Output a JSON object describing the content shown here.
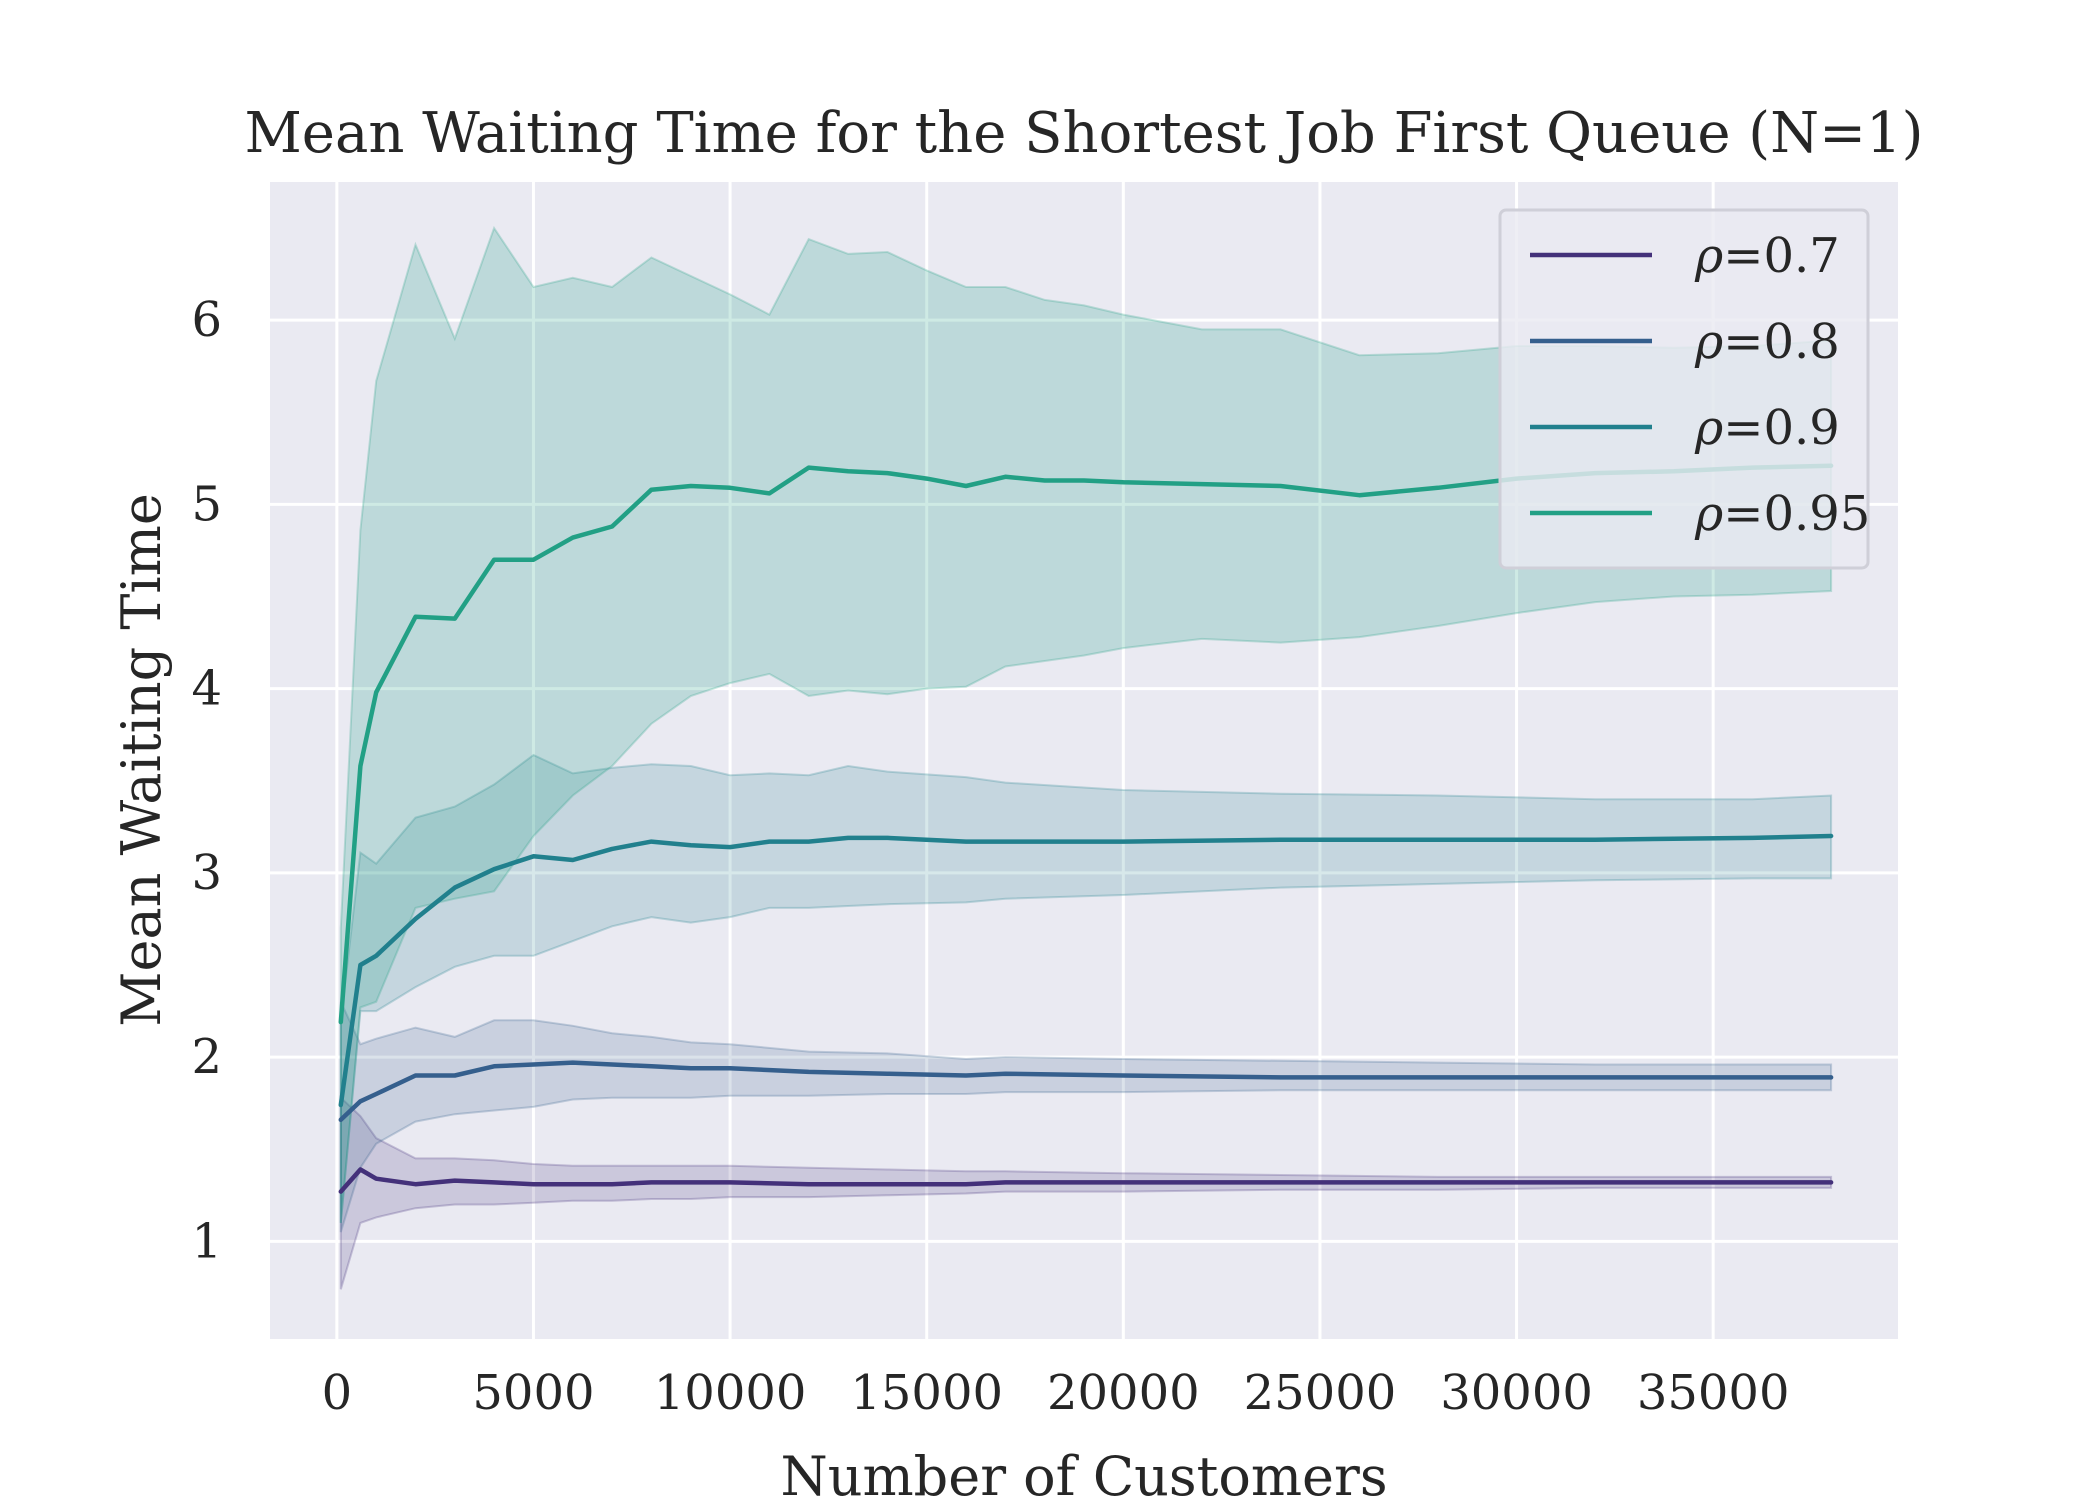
{
  "chart_data": {
    "type": "line",
    "title": "Mean Waiting Time for the Shortest Job First Queue (N=1)",
    "xlabel": "Number of Customers",
    "ylabel": "Mean Waiting Time",
    "xlim": [
      -1700,
      39700
    ],
    "ylim": [
      0.47,
      6.75
    ],
    "xticks": [
      0,
      5000,
      10000,
      15000,
      20000,
      25000,
      30000,
      35000
    ],
    "xtick_labels": [
      "0",
      "5000",
      "10000",
      "15000",
      "20000",
      "25000",
      "30000",
      "35000"
    ],
    "yticks": [
      1,
      2,
      3,
      4,
      5,
      6
    ],
    "ytick_labels": [
      "1",
      "2",
      "3",
      "4",
      "5",
      "6"
    ],
    "grid": true,
    "legend_position": "top-right",
    "legend_prefix": "ρ",
    "series": [
      {
        "name": "=0.7",
        "color": "#44317a",
        "x": [
          100,
          600,
          1000,
          2000,
          3000,
          4000,
          5000,
          6000,
          7000,
          8000,
          9000,
          10000,
          12000,
          14000,
          16000,
          17000,
          20000,
          24000,
          28000,
          32000,
          36000,
          38000
        ],
        "y": [
          1.27,
          1.39,
          1.34,
          1.31,
          1.33,
          1.32,
          1.31,
          1.31,
          1.31,
          1.32,
          1.32,
          1.32,
          1.31,
          1.31,
          1.31,
          1.32,
          1.32,
          1.32,
          1.32,
          1.32,
          1.32,
          1.32
        ],
        "lower": [
          0.74,
          1.1,
          1.13,
          1.18,
          1.2,
          1.2,
          1.21,
          1.22,
          1.22,
          1.23,
          1.23,
          1.24,
          1.24,
          1.25,
          1.26,
          1.27,
          1.27,
          1.28,
          1.28,
          1.29,
          1.29,
          1.29
        ],
        "upper": [
          1.78,
          1.68,
          1.56,
          1.45,
          1.45,
          1.44,
          1.42,
          1.41,
          1.41,
          1.41,
          1.41,
          1.41,
          1.4,
          1.39,
          1.38,
          1.38,
          1.37,
          1.36,
          1.35,
          1.35,
          1.35,
          1.35
        ]
      },
      {
        "name": "=0.8",
        "color": "#355f8d",
        "x": [
          100,
          600,
          1000,
          2000,
          3000,
          4000,
          5000,
          6000,
          7000,
          8000,
          9000,
          10000,
          12000,
          14000,
          16000,
          17000,
          20000,
          24000,
          28000,
          32000,
          36000,
          38000
        ],
        "y": [
          1.66,
          1.76,
          1.8,
          1.9,
          1.9,
          1.95,
          1.96,
          1.97,
          1.96,
          1.95,
          1.94,
          1.94,
          1.92,
          1.91,
          1.9,
          1.91,
          1.9,
          1.89,
          1.89,
          1.89,
          1.89,
          1.89
        ],
        "lower": [
          1.05,
          1.4,
          1.53,
          1.65,
          1.69,
          1.71,
          1.73,
          1.77,
          1.78,
          1.78,
          1.78,
          1.79,
          1.79,
          1.8,
          1.8,
          1.81,
          1.81,
          1.82,
          1.82,
          1.82,
          1.82,
          1.82
        ],
        "upper": [
          2.3,
          2.07,
          2.1,
          2.16,
          2.11,
          2.2,
          2.2,
          2.17,
          2.13,
          2.11,
          2.08,
          2.07,
          2.03,
          2.02,
          1.99,
          2.0,
          1.99,
          1.98,
          1.97,
          1.96,
          1.96,
          1.96
        ]
      },
      {
        "name": "=0.9",
        "color": "#21808d",
        "x": [
          100,
          600,
          1000,
          2000,
          3000,
          4000,
          5000,
          6000,
          7000,
          8000,
          9000,
          10000,
          11000,
          12000,
          13000,
          14000,
          16000,
          17000,
          20000,
          24000,
          28000,
          32000,
          36000,
          38000
        ],
        "y": [
          1.74,
          2.5,
          2.55,
          2.75,
          2.92,
          3.02,
          3.09,
          3.07,
          3.13,
          3.17,
          3.15,
          3.14,
          3.17,
          3.17,
          3.19,
          3.19,
          3.17,
          3.17,
          3.17,
          3.18,
          3.18,
          3.18,
          3.19,
          3.2
        ],
        "lower": [
          1.1,
          2.25,
          2.25,
          2.38,
          2.49,
          2.55,
          2.55,
          2.63,
          2.71,
          2.76,
          2.73,
          2.76,
          2.81,
          2.81,
          2.82,
          2.83,
          2.84,
          2.86,
          2.88,
          2.92,
          2.94,
          2.96,
          2.97,
          2.97
        ],
        "upper": [
          2.2,
          3.11,
          3.05,
          3.3,
          3.36,
          3.48,
          3.64,
          3.54,
          3.57,
          3.59,
          3.58,
          3.53,
          3.54,
          3.53,
          3.58,
          3.55,
          3.52,
          3.49,
          3.45,
          3.43,
          3.42,
          3.4,
          3.4,
          3.42
        ]
      },
      {
        "name": "=0.95",
        "color": "#22a085",
        "x": [
          100,
          600,
          1000,
          2000,
          3000,
          4000,
          5000,
          6000,
          7000,
          8000,
          9000,
          10000,
          11000,
          12000,
          13000,
          14000,
          15000,
          16000,
          17000,
          18000,
          19000,
          20000,
          22000,
          24000,
          26000,
          28000,
          30000,
          32000,
          34000,
          36000,
          38000
        ],
        "y": [
          2.19,
          3.58,
          3.98,
          4.39,
          4.38,
          4.7,
          4.7,
          4.82,
          4.88,
          5.08,
          5.1,
          5.09,
          5.06,
          5.2,
          5.18,
          5.17,
          5.14,
          5.1,
          5.15,
          5.13,
          5.13,
          5.12,
          5.11,
          5.1,
          5.05,
          5.09,
          5.14,
          5.17,
          5.18,
          5.2,
          5.21
        ],
        "lower": [
          1.1,
          2.27,
          2.3,
          2.81,
          2.86,
          2.9,
          3.2,
          3.42,
          3.58,
          3.81,
          3.96,
          4.03,
          4.08,
          3.96,
          3.99,
          3.97,
          4.0,
          4.01,
          4.12,
          4.15,
          4.18,
          4.22,
          4.27,
          4.25,
          4.28,
          4.34,
          4.41,
          4.47,
          4.5,
          4.51,
          4.53
        ],
        "upper": [
          2.7,
          4.86,
          5.67,
          6.41,
          5.9,
          6.5,
          6.18,
          6.23,
          6.18,
          6.34,
          6.24,
          6.14,
          6.03,
          6.44,
          6.36,
          6.37,
          6.27,
          6.18,
          6.18,
          6.11,
          6.08,
          6.03,
          5.95,
          5.95,
          5.81,
          5.82,
          5.86,
          5.86,
          5.85,
          5.86,
          5.89
        ]
      }
    ]
  }
}
